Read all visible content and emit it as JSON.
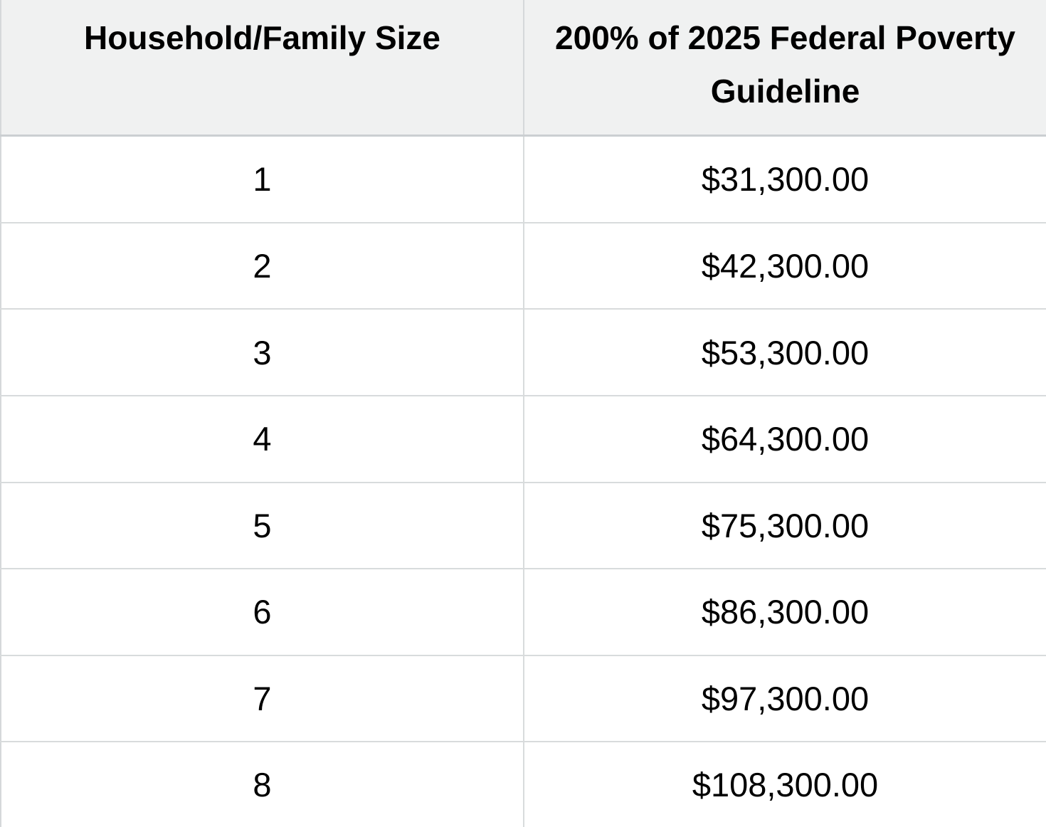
{
  "table": {
    "header": {
      "household_size": "Household/Family Size",
      "guideline": "200% of 2025 Federal Poverty Guideline"
    },
    "rows": [
      {
        "size": "1",
        "amount": "$31,300.00"
      },
      {
        "size": "2",
        "amount": "$42,300.00"
      },
      {
        "size": "3",
        "amount": "$53,300.00"
      },
      {
        "size": "4",
        "amount": "$64,300.00"
      },
      {
        "size": "5",
        "amount": "$75,300.00"
      },
      {
        "size": "6",
        "amount": "$86,300.00"
      },
      {
        "size": "7",
        "amount": "$97,300.00"
      },
      {
        "size": "8",
        "amount": "$108,300.00"
      }
    ]
  },
  "colors": {
    "header_background": "#f0f1f1",
    "row_background": "#ffffff",
    "grid_border": "#d8dbdc",
    "header_border": "#cbcfd2",
    "text": "#000000"
  }
}
